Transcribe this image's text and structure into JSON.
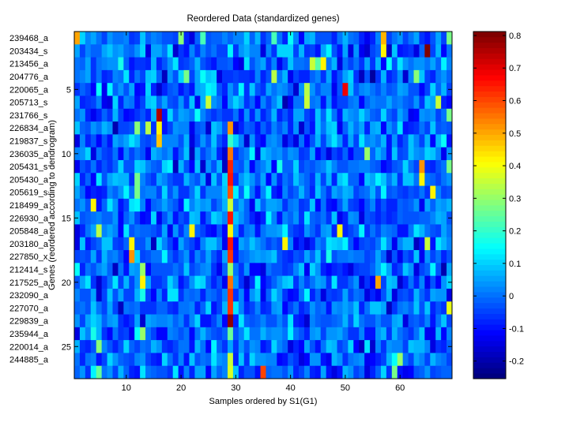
{
  "chart_data": {
    "type": "heatmap",
    "title": "Reordered Data (standardized genes)",
    "xlabel": "Samples ordered by S1(G1)",
    "ylabel": "Genes (reordered according to dendrogram)",
    "n_columns": 69,
    "xlim": [
      0.5,
      69.5
    ],
    "x_ticks": [
      10,
      20,
      30,
      40,
      50,
      60
    ],
    "y_ticks": [
      5,
      10,
      15,
      20,
      25
    ],
    "rows": [
      "239468_a",
      "203434_s",
      "213456_a",
      "204776_a",
      "220065_a",
      "205713_s",
      "231766_s",
      "226834_a",
      "219837_s",
      "236035_a",
      "205431_s",
      "205430_a",
      "205619_s",
      "218499_a",
      "226930_a",
      "205848_a",
      "203180_a",
      "227850_x",
      "212414_s",
      "217525_a",
      "232090_a",
      "227070_a",
      "229839_a",
      "235944_a",
      "220014_a",
      "244885_a"
    ],
    "extra_row_count": 1,
    "colorbar": {
      "range": [
        -0.254,
        0.812
      ],
      "ticks": [
        "-0.2",
        "-0.1",
        "0",
        "0.1",
        "0.2",
        "0.3",
        "0.4",
        "0.5",
        "0.6",
        "0.7",
        "0.8"
      ],
      "colormap": "jet"
    },
    "background_value_range": [
      -0.22,
      0.18
    ],
    "notable_cells": [
      {
        "row": 1,
        "col": 1,
        "value": 0.5
      },
      {
        "row": 1,
        "col": 20,
        "value": 0.28
      },
      {
        "row": 1,
        "col": 24,
        "value": 0.22
      },
      {
        "row": 1,
        "col": 37,
        "value": 0.22
      },
      {
        "row": 1,
        "col": 57,
        "value": 0.48
      },
      {
        "row": 1,
        "col": 69,
        "value": 0.27
      },
      {
        "row": 2,
        "col": 57,
        "value": 0.42
      },
      {
        "row": 2,
        "col": 65,
        "value": 0.8
      },
      {
        "row": 3,
        "col": 44,
        "value": 0.35
      },
      {
        "row": 3,
        "col": 45,
        "value": 0.24
      },
      {
        "row": 3,
        "col": 46,
        "value": 0.42
      },
      {
        "row": 4,
        "col": 21,
        "value": 0.27
      },
      {
        "row": 4,
        "col": 37,
        "value": 0.33
      },
      {
        "row": 4,
        "col": 63,
        "value": 0.28
      },
      {
        "row": 5,
        "col": 43,
        "value": 0.33
      },
      {
        "row": 5,
        "col": 50,
        "value": 0.68
      },
      {
        "row": 6,
        "col": 25,
        "value": 0.36
      },
      {
        "row": 6,
        "col": 43,
        "value": 0.35
      },
      {
        "row": 6,
        "col": 67,
        "value": 0.36
      },
      {
        "row": 7,
        "col": 16,
        "value": 0.76
      },
      {
        "row": 7,
        "col": 69,
        "value": 0.27
      },
      {
        "row": 8,
        "col": 12,
        "value": 0.28
      },
      {
        "row": 8,
        "col": 14,
        "value": 0.33
      },
      {
        "row": 8,
        "col": 16,
        "value": 0.42
      },
      {
        "row": 8,
        "col": 29,
        "value": 0.52
      },
      {
        "row": 9,
        "col": 16,
        "value": 0.47
      },
      {
        "row": 9,
        "col": 29,
        "value": 0.2
      },
      {
        "row": 10,
        "col": 29,
        "value": 0.56
      },
      {
        "row": 10,
        "col": 54,
        "value": 0.3
      },
      {
        "row": 11,
        "col": 29,
        "value": 0.64
      },
      {
        "row": 11,
        "col": 64,
        "value": 0.52
      },
      {
        "row": 11,
        "col": 69,
        "value": 0.27
      },
      {
        "row": 12,
        "col": 29,
        "value": 0.66
      },
      {
        "row": 12,
        "col": 64,
        "value": 0.42
      },
      {
        "row": 12,
        "col": 12,
        "value": 0.27
      },
      {
        "row": 13,
        "col": 29,
        "value": 0.58
      },
      {
        "row": 13,
        "col": 66,
        "value": 0.42
      },
      {
        "row": 13,
        "col": 12,
        "value": 0.27
      },
      {
        "row": 14,
        "col": 4,
        "value": 0.42
      },
      {
        "row": 14,
        "col": 29,
        "value": 0.35
      },
      {
        "row": 15,
        "col": 29,
        "value": 0.65
      },
      {
        "row": 16,
        "col": 5,
        "value": 0.33
      },
      {
        "row": 16,
        "col": 22,
        "value": 0.42
      },
      {
        "row": 16,
        "col": 29,
        "value": 0.42
      },
      {
        "row": 16,
        "col": 49,
        "value": 0.42
      },
      {
        "row": 17,
        "col": 11,
        "value": 0.42
      },
      {
        "row": 17,
        "col": 29,
        "value": 0.65
      },
      {
        "row": 17,
        "col": 39,
        "value": 0.42
      },
      {
        "row": 17,
        "col": 65,
        "value": 0.35
      },
      {
        "row": 18,
        "col": 11,
        "value": 0.52
      },
      {
        "row": 18,
        "col": 29,
        "value": 0.62
      },
      {
        "row": 19,
        "col": 13,
        "value": 0.3
      },
      {
        "row": 19,
        "col": 29,
        "value": 0.3
      },
      {
        "row": 19,
        "col": 29,
        "value": 0.3
      },
      {
        "row": 20,
        "col": 13,
        "value": 0.42
      },
      {
        "row": 20,
        "col": 29,
        "value": 0.56
      },
      {
        "row": 20,
        "col": 56,
        "value": 0.5
      },
      {
        "row": 21,
        "col": 29,
        "value": 0.62
      },
      {
        "row": 22,
        "col": 29,
        "value": 0.62
      },
      {
        "row": 22,
        "col": 69,
        "value": 0.38
      },
      {
        "row": 23,
        "col": 29,
        "value": 0.78
      },
      {
        "row": 24,
        "col": 29,
        "value": 0.25
      },
      {
        "row": 24,
        "col": 13,
        "value": 0.3
      },
      {
        "row": 25,
        "col": 29,
        "value": 0.05
      },
      {
        "row": 25,
        "col": 5,
        "value": 0.28
      },
      {
        "row": 26,
        "col": 29,
        "value": 0.35
      },
      {
        "row": 26,
        "col": 60,
        "value": 0.3
      },
      {
        "row": 27,
        "col": 29,
        "value": 0.37
      },
      {
        "row": 27,
        "col": 35,
        "value": 0.6
      },
      {
        "row": 27,
        "col": 5,
        "value": 0.25
      },
      {
        "row": 27,
        "col": 59,
        "value": 0.27
      }
    ]
  }
}
